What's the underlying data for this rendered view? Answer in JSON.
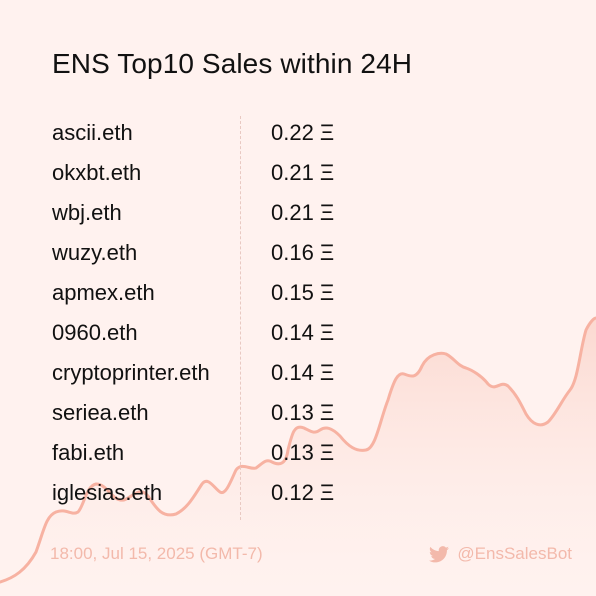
{
  "title": "ENS Top10 Sales within 24H",
  "sales": [
    {
      "name": "ascii.eth",
      "price": "0.22 Ξ"
    },
    {
      "name": "okxbt.eth",
      "price": "0.21 Ξ"
    },
    {
      "name": "wbj.eth",
      "price": "0.21 Ξ"
    },
    {
      "name": "wuzy.eth",
      "price": "0.16 Ξ"
    },
    {
      "name": "apmex.eth",
      "price": "0.15 Ξ"
    },
    {
      "name": "0960.eth",
      "price": "0.14 Ξ"
    },
    {
      "name": "cryptoprinter.eth",
      "price": "0.14 Ξ"
    },
    {
      "name": "seriea.eth",
      "price": "0.13 Ξ"
    },
    {
      "name": "fabi.eth",
      "price": "0.13 Ξ"
    },
    {
      "name": "iglesias.eth",
      "price": "0.12 Ξ"
    }
  ],
  "footer": {
    "timestamp": "18:00, Jul 15, 2025 (GMT-7)",
    "handle": "@EnsSalesBot",
    "handle_icon": "twitter-bird-icon"
  },
  "colors": {
    "background": "#fff2ef",
    "accent_line": "#f7b2a2",
    "footer_text": "#f3b9ab",
    "text": "#111111"
  }
}
